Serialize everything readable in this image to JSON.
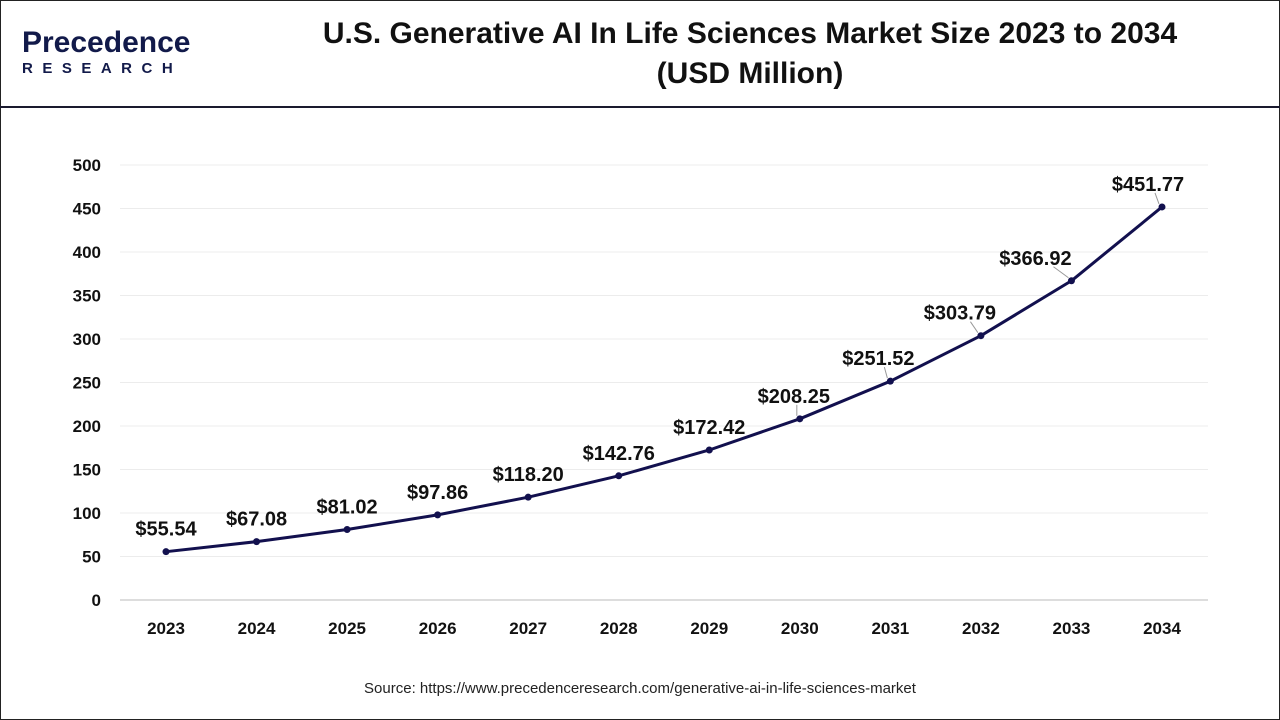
{
  "header": {
    "logo_main": "Precedence",
    "logo_sub": "RESEARCH",
    "title_line1": "U.S. Generative AI In Life Sciences Market Size 2023 to 2034",
    "title_line2": "(USD Million)"
  },
  "source": "Source: https://www.precedenceresearch.com/generative-ai-in-life-sciences-market",
  "chart_data": {
    "type": "line",
    "title": "U.S. Generative AI In Life Sciences Market Size 2023 to 2034 (USD Million)",
    "categories": [
      "2023",
      "2024",
      "2025",
      "2026",
      "2027",
      "2028",
      "2029",
      "2030",
      "2031",
      "2032",
      "2033",
      "2034"
    ],
    "values": [
      55.54,
      67.08,
      81.02,
      97.86,
      118.2,
      142.76,
      172.42,
      208.25,
      251.52,
      303.79,
      366.92,
      451.77
    ],
    "data_labels": [
      "$55.54",
      "$67.08",
      "$81.02",
      "$97.86",
      "$118.20",
      "$142.76",
      "$172.42",
      "$208.25",
      "$251.52",
      "$303.79",
      "$366.92",
      "$451.77"
    ],
    "yticks": [
      "0",
      "50",
      "100",
      "150",
      "200",
      "250",
      "300",
      "350",
      "400",
      "450",
      "500"
    ],
    "ylim": [
      0,
      500
    ],
    "grid": true,
    "line_color": "#12104e",
    "xlabel": "",
    "ylabel": ""
  }
}
